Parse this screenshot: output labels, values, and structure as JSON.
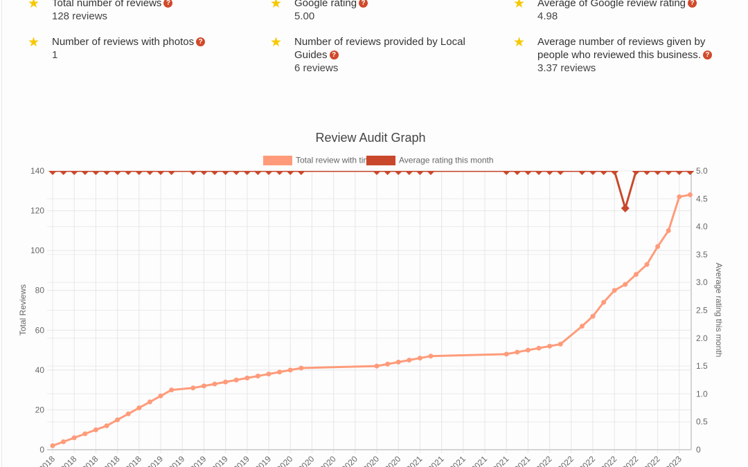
{
  "stats": [
    {
      "label": "Total number of reviews",
      "value": "128 reviews"
    },
    {
      "label": "Google rating",
      "value": "5.00"
    },
    {
      "label": "Average of Google review rating",
      "value": "4.98"
    },
    {
      "label": "Number of reviews with photos",
      "value": "1"
    },
    {
      "label": "Number of reviews provided by Local Guides",
      "value": "6 reviews"
    },
    {
      "label": "Average number of reviews given by people who reviewed this business.",
      "value": "3.37 reviews"
    }
  ],
  "help_icon": "?",
  "chart_data": {
    "type": "line",
    "title": "Review Audit Graph",
    "ylabel": "Total Reviews",
    "y2label": "Average rating this month",
    "ylim": [
      0,
      140
    ],
    "y2lim": [
      0,
      5.0
    ],
    "yticks": [
      0,
      20,
      40,
      60,
      80,
      100,
      120,
      140
    ],
    "y2ticks": [
      "0",
      "0.5",
      "1.0",
      "1.5",
      "2.0",
      "2.5",
      "3.0",
      "3.5",
      "4.0",
      "4.5",
      "5.0"
    ],
    "grid": true,
    "legend_position": "top",
    "xtick_labels": [
      "2018",
      "2018",
      "2018",
      "2018",
      "2018",
      "2019",
      "2019",
      "2019",
      "2019",
      "2019",
      "2019",
      "2020",
      "2020",
      "2020",
      "2020",
      "2020",
      "2020",
      "2021",
      "2021",
      "2021",
      "2021",
      "2021",
      "2021",
      "2022",
      "2022",
      "2022",
      "2022",
      "2022",
      "2022",
      "2023"
    ],
    "series": [
      {
        "name": "Total review with time",
        "color": "#ff9b7a",
        "axis": "left"
      },
      {
        "name": "Average rating this month",
        "color": "#c9482b",
        "axis": "right"
      }
    ],
    "points": [
      {
        "date": "2018-03",
        "total": 2,
        "rating": 5
      },
      {
        "date": "2018-04",
        "total": 4,
        "rating": 5
      },
      {
        "date": "2018-05",
        "total": 6,
        "rating": 5
      },
      {
        "date": "2018-06",
        "total": 8,
        "rating": 5
      },
      {
        "date": "2018-07",
        "total": 10,
        "rating": 5
      },
      {
        "date": "2018-08",
        "total": 12,
        "rating": 5
      },
      {
        "date": "2018-09",
        "total": 15,
        "rating": 5
      },
      {
        "date": "2018-10",
        "total": 18,
        "rating": 5
      },
      {
        "date": "2018-11",
        "total": 21,
        "rating": 5
      },
      {
        "date": "2018-12",
        "total": 24,
        "rating": 5
      },
      {
        "date": "2019-01",
        "total": 27,
        "rating": 5
      },
      {
        "date": "2019-02",
        "total": 30,
        "rating": 5
      },
      {
        "date": "2019-04",
        "total": 31,
        "rating": 5
      },
      {
        "date": "2019-05",
        "total": 32,
        "rating": 5
      },
      {
        "date": "2019-06",
        "total": 33,
        "rating": 5
      },
      {
        "date": "2019-07",
        "total": 34,
        "rating": 5
      },
      {
        "date": "2019-08",
        "total": 35,
        "rating": 5
      },
      {
        "date": "2019-09",
        "total": 36,
        "rating": 5
      },
      {
        "date": "2019-10",
        "total": 37,
        "rating": 5
      },
      {
        "date": "2019-11",
        "total": 38,
        "rating": 5
      },
      {
        "date": "2019-12",
        "total": 39,
        "rating": 5
      },
      {
        "date": "2020-01",
        "total": 40,
        "rating": 5
      },
      {
        "date": "2020-02",
        "total": 41,
        "rating": 5
      },
      {
        "date": "2020-09",
        "total": 42,
        "rating": 5
      },
      {
        "date": "2020-10",
        "total": 43,
        "rating": 5
      },
      {
        "date": "2020-11",
        "total": 44,
        "rating": 5
      },
      {
        "date": "2020-12",
        "total": 45,
        "rating": 5
      },
      {
        "date": "2021-01",
        "total": 46,
        "rating": 5
      },
      {
        "date": "2021-02",
        "total": 47,
        "rating": 5
      },
      {
        "date": "2021-09",
        "total": 48,
        "rating": 5
      },
      {
        "date": "2021-10",
        "total": 49,
        "rating": 5
      },
      {
        "date": "2021-11",
        "total": 50,
        "rating": 5
      },
      {
        "date": "2021-12",
        "total": 51,
        "rating": 5
      },
      {
        "date": "2022-01",
        "total": 52,
        "rating": 5
      },
      {
        "date": "2022-02",
        "total": 53,
        "rating": 5
      },
      {
        "date": "2022-04",
        "total": 62,
        "rating": 5
      },
      {
        "date": "2022-05",
        "total": 67,
        "rating": 5
      },
      {
        "date": "2022-06",
        "total": 74,
        "rating": 5
      },
      {
        "date": "2022-07",
        "total": 80,
        "rating": 5
      },
      {
        "date": "2022-08",
        "total": 83,
        "rating": 4.33
      },
      {
        "date": "2022-09",
        "total": 88,
        "rating": 5
      },
      {
        "date": "2022-10",
        "total": 93,
        "rating": 5
      },
      {
        "date": "2022-11",
        "total": 102,
        "rating": 5
      },
      {
        "date": "2022-12",
        "total": 110,
        "rating": 5
      },
      {
        "date": "2023-01",
        "total": 127,
        "rating": 5
      },
      {
        "date": "2023-02",
        "total": 128,
        "rating": 5
      }
    ]
  }
}
